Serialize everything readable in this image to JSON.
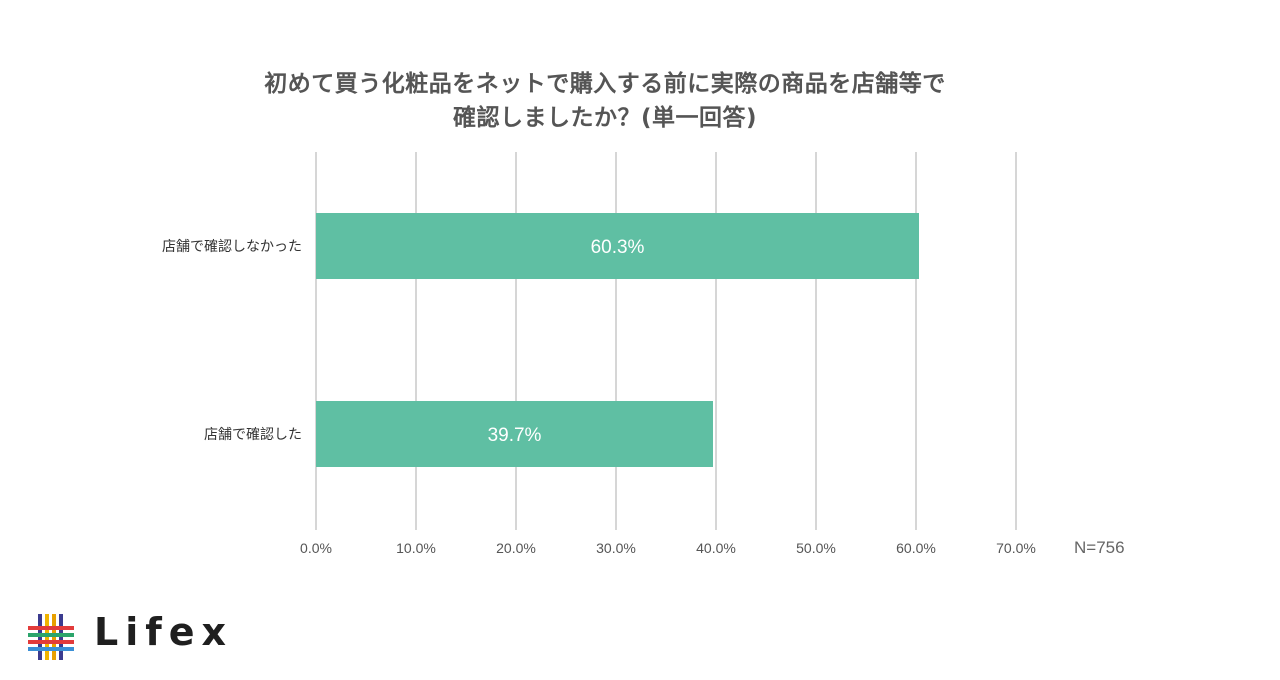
{
  "chart_data": {
    "type": "bar",
    "orientation": "horizontal",
    "title_lines": [
      "初めて買う化粧品をネットで購入する前に実際の商品を店舗等で",
      "確認しましたか？(単一回答)"
    ],
    "categories": [
      "店舗で確認しなかった",
      "店舗で確認した"
    ],
    "values": [
      60.3,
      39.7
    ],
    "value_labels": [
      "60.3%",
      "39.7%"
    ],
    "x_ticks": [
      "0.0%",
      "10.0%",
      "20.0%",
      "30.0%",
      "40.0%",
      "50.0%",
      "60.0%",
      "70.0%"
    ],
    "xlim": [
      0,
      70
    ],
    "note": "N=756",
    "grid": "vertical",
    "bar_color": "#5fbfa3"
  },
  "logo": {
    "text": "Lifex"
  }
}
